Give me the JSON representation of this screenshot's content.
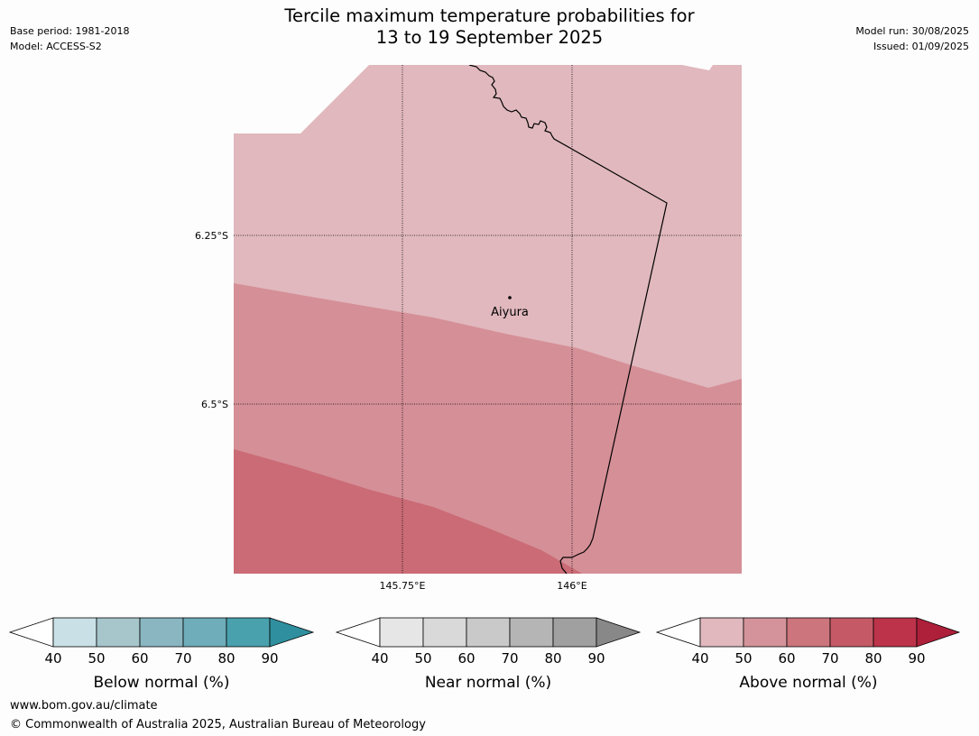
{
  "title_line1": "Tercile maximum temperature probabilities for",
  "title_line2": "13 to 19 September 2025",
  "meta_left": {
    "base_period": "Base period: 1981-2018",
    "model": "Model: ACCESS-S2"
  },
  "meta_right": {
    "model_run": "Model run: 30/08/2025",
    "issued": "Issued: 01/09/2025"
  },
  "map": {
    "lat_labels": [
      "6.25°S",
      "6.5°S"
    ],
    "lon_labels": [
      "145.75°E",
      "146°E"
    ],
    "place": "Aiyura",
    "colors": {
      "above_40_50": "#e0b8bd",
      "above_50_60": "#d58f97",
      "above_60_70": "#ca6b76",
      "border": "#000000",
      "grid": "#000000"
    }
  },
  "colorbars": [
    {
      "title": "Below normal (%)",
      "ticks": [
        "40",
        "50",
        "60",
        "70",
        "80",
        "90"
      ],
      "colors": [
        "#c9e1e6",
        "#a7c6cc",
        "#89b6c1",
        "#6eadb9",
        "#4aa1ae",
        "#2f8f9e"
      ]
    },
    {
      "title": "Near normal (%)",
      "ticks": [
        "40",
        "50",
        "60",
        "70",
        "80",
        "90"
      ],
      "colors": [
        "#e6e6e6",
        "#d9d9d9",
        "#c9c9c9",
        "#b5b5b5",
        "#a0a0a0",
        "#888888"
      ]
    },
    {
      "title": "Above normal (%)",
      "ticks": [
        "40",
        "50",
        "60",
        "70",
        "80",
        "90"
      ],
      "colors": [
        "#e0b8bd",
        "#d4939a",
        "#cc757d",
        "#c55a66",
        "#bc334a",
        "#ae1f3a"
      ]
    }
  ],
  "footer": {
    "url": "www.bom.gov.au/climate",
    "copyright": "© Commonwealth of Australia 2025, Australian Bureau of Meteorology"
  }
}
